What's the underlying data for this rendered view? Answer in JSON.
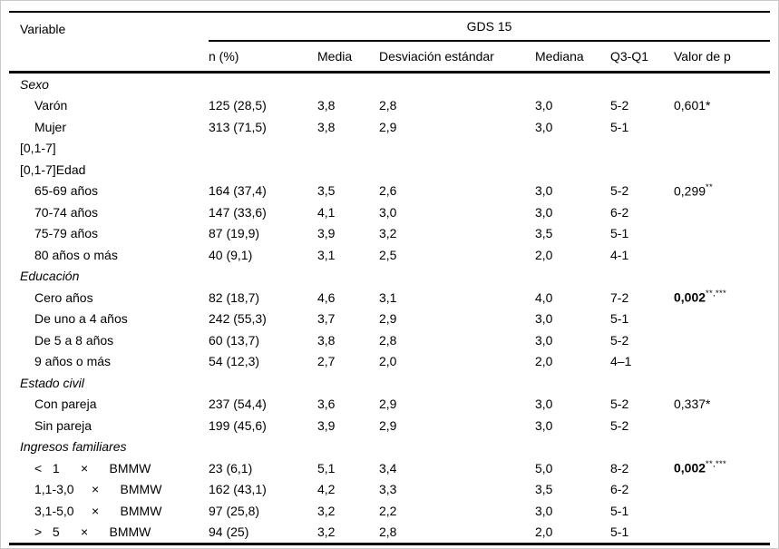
{
  "colors": {
    "background": "#ffffff",
    "text": "#000000",
    "rule": "#000000",
    "frame": "#c9c9c9"
  },
  "table": {
    "headers": {
      "variable": "Variable",
      "group": "GDS 15",
      "n": "n (%)",
      "media": "Media",
      "desviacion": "Desviación estándar",
      "mediana": "Mediana",
      "q3q1": "Q3-Q1",
      "valor_p": "Valor de p"
    },
    "rows": [
      {
        "type": "section",
        "italic": true,
        "label": "Sexo"
      },
      {
        "type": "item",
        "label": "Varón",
        "n": "125 (28,5)",
        "media": "3,8",
        "desviacion": "2,8",
        "mediana": "3,0",
        "q3q1": "5-2",
        "p": "0,601*",
        "p_sup": "",
        "p_bold": false
      },
      {
        "type": "item",
        "label": "Mujer",
        "n": "313 (71,5)",
        "media": "3,8",
        "desviacion": "2,9",
        "mediana": "3,0",
        "q3q1": "5-1",
        "p": "",
        "p_sup": "",
        "p_bold": false
      },
      {
        "type": "section",
        "italic": false,
        "label": "[0,1-7]"
      },
      {
        "type": "section",
        "italic": false,
        "label": "[0,1-7]Edad"
      },
      {
        "type": "item",
        "label": "65-69 años",
        "n": "164 (37,4)",
        "media": "3,5",
        "desviacion": "2,6",
        "mediana": "3,0",
        "q3q1": "5-2",
        "p": "0,299",
        "p_sup": "**",
        "p_bold": false
      },
      {
        "type": "item",
        "label": "70-74 años",
        "n": "147 (33,6)",
        "media": "4,1",
        "desviacion": "3,0",
        "mediana": "3,0",
        "q3q1": "6-2",
        "p": "",
        "p_sup": "",
        "p_bold": false
      },
      {
        "type": "item",
        "label": "75-79 años",
        "n": "87 (19,9)",
        "media": "3,9",
        "desviacion": "3,2",
        "mediana": "3,5",
        "q3q1": "5-1",
        "p": "",
        "p_sup": "",
        "p_bold": false
      },
      {
        "type": "item",
        "label": "80 años o más",
        "n": "40 (9,1)",
        "media": "3,1",
        "desviacion": "2,5",
        "mediana": "2,0",
        "q3q1": "4-1",
        "p": "",
        "p_sup": "",
        "p_bold": false
      },
      {
        "type": "section",
        "italic": true,
        "label": "Educación"
      },
      {
        "type": "item",
        "label": "Cero años",
        "n": "82 (18,7)",
        "media": "4,6",
        "desviacion": "3,1",
        "mediana": "4,0",
        "q3q1": "7-2",
        "p": "0,002",
        "p_sup": "**,***",
        "p_bold": true
      },
      {
        "type": "item",
        "label": "De uno a 4 años",
        "n": "242 (55,3)",
        "media": "3,7",
        "desviacion": "2,9",
        "mediana": "3,0",
        "q3q1": "5-1",
        "p": "",
        "p_sup": "",
        "p_bold": false
      },
      {
        "type": "item",
        "label": "De 5 a 8 años",
        "n": "60 (13,7)",
        "media": "3,8",
        "desviacion": "2,8",
        "mediana": "3,0",
        "q3q1": "5-2",
        "p": "",
        "p_sup": "",
        "p_bold": false
      },
      {
        "type": "item",
        "label": "9 años o más",
        "n": "54 (12,3)",
        "media": "2,7",
        "desviacion": "2,0",
        "mediana": "2,0",
        "q3q1": "4–1",
        "p": "",
        "p_sup": "",
        "p_bold": false
      },
      {
        "type": "section",
        "italic": true,
        "label": "Estado civil"
      },
      {
        "type": "item",
        "label": "Con pareja",
        "n": "237 (54,4)",
        "media": "3,6",
        "desviacion": "2,9",
        "mediana": "3,0",
        "q3q1": "5-2",
        "p": "0,337*",
        "p_sup": "",
        "p_bold": false
      },
      {
        "type": "item",
        "label": "Sin pareja",
        "n": "199 (45,6)",
        "media": "3,9",
        "desviacion": "2,9",
        "mediana": "3,0",
        "q3q1": "5-2",
        "p": "",
        "p_sup": "",
        "p_bold": false
      },
      {
        "type": "section",
        "italic": true,
        "label": "Ingresos familiares"
      },
      {
        "type": "item",
        "label": "<   1      ×      BMMW",
        "n": "23 (6,1)",
        "media": "5,1",
        "desviacion": "3,4",
        "mediana": "5,0",
        "q3q1": "8-2",
        "p": "0,002",
        "p_sup": "**,***",
        "p_bold": true
      },
      {
        "type": "item",
        "label": "1,1-3,0     ×      BMMW",
        "n": "162 (43,1)",
        "media": "4,2",
        "desviacion": "3,3",
        "mediana": "3,5",
        "q3q1": "6-2",
        "p": "",
        "p_sup": "",
        "p_bold": false
      },
      {
        "type": "item",
        "label": "3,1-5,0     ×      BMMW",
        "n": "97 (25,8)",
        "media": "3,2",
        "desviacion": "2,2",
        "mediana": "3,0",
        "q3q1": "5-1",
        "p": "",
        "p_sup": "",
        "p_bold": false
      },
      {
        "type": "item",
        "label": ">   5      ×      BMMW",
        "n": "94 (25)",
        "media": "3,2",
        "desviacion": "2,8",
        "mediana": "2,0",
        "q3q1": "5-1",
        "p": "",
        "p_sup": "",
        "p_bold": false
      }
    ]
  }
}
